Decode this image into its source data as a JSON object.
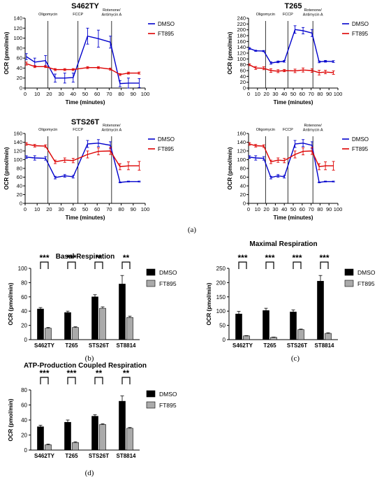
{
  "panel_labels": {
    "a": "(a)",
    "b": "(b)",
    "c": "(c)",
    "d": "(d)"
  },
  "chart_data": [
    {
      "type": "line",
      "title": "S462TY",
      "xlabel": "Time (minutes)",
      "ylabel": "OCR (pmol/min)",
      "xlim": [
        0,
        100
      ],
      "ylim": [
        0,
        140
      ],
      "xticks": [
        "0",
        "10",
        "20",
        "30",
        "40",
        "50",
        "60",
        "70",
        "80",
        "90",
        "100"
      ],
      "yticks": [
        "0",
        "20",
        "40",
        "60",
        "80",
        "100",
        "120",
        "140"
      ],
      "injections": [
        {
          "x": 19,
          "label": "Oligomycin"
        },
        {
          "x": 44,
          "label": "FCCP"
        },
        {
          "x": 72,
          "label": "Rotenone/ Antimycin A",
          "lines": [
            "Rotenone/",
            "Antimycin A"
          ]
        }
      ],
      "legend": "right",
      "series": [
        {
          "name": "DMSO",
          "color": "#0000cc",
          "x": [
            1,
            8,
            17,
            25,
            33,
            40,
            52,
            61,
            71,
            79,
            86,
            95
          ],
          "y": [
            63,
            52,
            55,
            20,
            20,
            21,
            104,
            99,
            92,
            9,
            10,
            10
          ],
          "err": [
            6,
            8,
            10,
            8,
            10,
            9,
            16,
            17,
            12,
            6,
            10,
            9
          ]
        },
        {
          "name": "FT895",
          "color": "#dd0000",
          "x": [
            1,
            8,
            17,
            25,
            33,
            40,
            52,
            61,
            71,
            79,
            86,
            95
          ],
          "y": [
            49,
            43,
            43,
            37,
            37,
            37,
            41,
            41,
            38,
            27,
            30,
            30
          ],
          "err": [
            3,
            2,
            2,
            2,
            2,
            2,
            2,
            2,
            2,
            2,
            2,
            2
          ]
        }
      ]
    },
    {
      "type": "line",
      "title": "T265",
      "xlabel": "Time (minutes)",
      "ylabel": "OCR (pmol/min)",
      "xlim": [
        0,
        100
      ],
      "ylim": [
        0,
        240
      ],
      "xticks": [
        "0",
        "10",
        "20",
        "30",
        "40",
        "50",
        "60",
        "70",
        "80",
        "90",
        "100"
      ],
      "yticks": [
        "0",
        "20",
        "40",
        "60",
        "80",
        "100",
        "120",
        "140",
        "160",
        "180",
        "200",
        "220",
        "240"
      ],
      "injections": [
        {
          "x": 19,
          "label": "Oligomycin"
        },
        {
          "x": 44,
          "label": "FCCP"
        },
        {
          "x": 72,
          "label": "Rotenone/ Antimycin A",
          "lines": [
            "Rotenone/",
            "Antimycin A"
          ]
        }
      ],
      "legend": "right",
      "series": [
        {
          "name": "DMSO",
          "color": "#0000cc",
          "x": [
            1,
            8,
            17,
            25,
            33,
            40,
            52,
            61,
            71,
            79,
            86,
            95
          ],
          "y": [
            136,
            128,
            127,
            86,
            90,
            92,
            201,
            197,
            189,
            90,
            92,
            91
          ],
          "err": [
            3,
            2,
            2,
            4,
            3,
            3,
            13,
            11,
            12,
            3,
            3,
            3
          ]
        },
        {
          "name": "FT895",
          "color": "#dd0000",
          "x": [
            1,
            8,
            17,
            25,
            33,
            40,
            52,
            61,
            71,
            79,
            86,
            95
          ],
          "y": [
            80,
            69,
            68,
            60,
            58,
            60,
            59,
            62,
            60,
            53,
            55,
            53
          ],
          "err": [
            3,
            5,
            5,
            6,
            5,
            4,
            6,
            7,
            6,
            8,
            6,
            6
          ]
        }
      ]
    },
    {
      "type": "line",
      "title": "STS26T",
      "xlabel": "Time (minutes)",
      "ylabel": "OCR (pmol/min)",
      "xlim": [
        0,
        100
      ],
      "ylim": [
        0,
        160
      ],
      "xticks": [
        "0",
        "10",
        "20",
        "30",
        "40",
        "50",
        "60",
        "70",
        "80",
        "90",
        "100"
      ],
      "yticks": [
        "0",
        "20",
        "40",
        "60",
        "80",
        "100",
        "120",
        "140",
        "160"
      ],
      "injections": [
        {
          "x": 19,
          "label": "Oligomycin"
        },
        {
          "x": 44,
          "label": "FCCP"
        },
        {
          "x": 72,
          "label": "Rotenone/ Antimycin A",
          "lines": [
            "Rotenone/",
            "Antimycin A"
          ]
        }
      ],
      "legend": "right",
      "series": [
        {
          "name": "DMSO",
          "color": "#0000cc",
          "x": [
            1,
            8,
            17,
            25,
            33,
            40,
            52,
            61,
            71,
            79,
            86,
            95
          ],
          "y": [
            106,
            104,
            103,
            59,
            63,
            61,
            136,
            138,
            133,
            48,
            50,
            50
          ],
          "err": [
            3,
            5,
            4,
            3,
            3,
            3,
            8,
            8,
            8,
            1,
            1,
            1
          ]
        },
        {
          "name": "FT895",
          "color": "#dd0000",
          "x": [
            1,
            8,
            17,
            25,
            33,
            40,
            52,
            61,
            71,
            79,
            86,
            95
          ],
          "y": [
            136,
            132,
            131,
            95,
            99,
            98,
            112,
            119,
            120,
            84,
            86,
            86
          ],
          "err": [
            3,
            3,
            3,
            4,
            5,
            5,
            8,
            8,
            8,
            7,
            9,
            10
          ]
        }
      ]
    },
    {
      "type": "line",
      "title": "",
      "xlabel": "Time (minutes)",
      "ylabel": "OCR (pmol/min)",
      "xlim": [
        0,
        100
      ],
      "ylim": [
        0,
        160
      ],
      "xticks": [
        "0",
        "10",
        "20",
        "30",
        "40",
        "50",
        "60",
        "70",
        "80",
        "90",
        "100"
      ],
      "yticks": [
        "0",
        "20",
        "40",
        "60",
        "80",
        "100",
        "120",
        "140",
        "160"
      ],
      "injections": [
        {
          "x": 19,
          "label": "Oligomycin"
        },
        {
          "x": 44,
          "label": "FCCP"
        },
        {
          "x": 72,
          "label": "Rotenone/ Antimycin A",
          "lines": [
            "Rotenone/",
            "Antimycin A"
          ]
        }
      ],
      "legend": "right",
      "series": [
        {
          "name": "DMSO",
          "color": "#0000cc",
          "x": [
            1,
            8,
            17,
            25,
            33,
            40,
            52,
            61,
            71,
            79,
            86,
            95
          ],
          "y": [
            106,
            104,
            103,
            59,
            63,
            61,
            136,
            138,
            133,
            48,
            50,
            50
          ],
          "err": [
            3,
            5,
            4,
            3,
            3,
            3,
            8,
            8,
            8,
            1,
            1,
            1
          ]
        },
        {
          "name": "FT895",
          "color": "#dd0000",
          "x": [
            1,
            8,
            17,
            25,
            33,
            40,
            52,
            61,
            71,
            79,
            86,
            95
          ],
          "y": [
            136,
            132,
            131,
            95,
            99,
            98,
            112,
            119,
            120,
            84,
            86,
            86
          ],
          "err": [
            3,
            3,
            3,
            4,
            5,
            5,
            8,
            8,
            8,
            7,
            9,
            10
          ]
        }
      ]
    },
    {
      "type": "bar",
      "title": "Basal Respiration",
      "ylabel": "OCR (pmol/min)",
      "ylim": [
        0,
        100
      ],
      "yticks": [
        "0",
        "20",
        "40",
        "60",
        "80",
        "100"
      ],
      "categories": [
        "S462TY",
        "T265",
        "STS26T",
        "ST8814"
      ],
      "significance": [
        "***",
        "***",
        "**",
        "**"
      ],
      "legend": "right",
      "series": [
        {
          "name": "DMSO",
          "color": "#000000",
          "values": [
            43,
            38,
            60,
            78
          ],
          "err": [
            2,
            2,
            3,
            12
          ]
        },
        {
          "name": "FT895",
          "color": "#aaaaaa",
          "values": [
            16,
            17,
            44,
            31
          ],
          "err": [
            1,
            1,
            2,
            2
          ]
        }
      ]
    },
    {
      "type": "bar",
      "title": "Maximal Respiration",
      "ylabel": "OCR (pmol/min)",
      "ylim": [
        0,
        250
      ],
      "yticks": [
        "0",
        "50",
        "100",
        "150",
        "200",
        "250"
      ],
      "categories": [
        "S462TY",
        "T265",
        "STS26T",
        "ST8814"
      ],
      "significance": [
        "***",
        "***",
        "***",
        "***"
      ],
      "legend": "right",
      "series": [
        {
          "name": "DMSO",
          "color": "#000000",
          "values": [
            90,
            102,
            97,
            205
          ],
          "err": [
            9,
            8,
            7,
            20
          ]
        },
        {
          "name": "FT895",
          "color": "#aaaaaa",
          "values": [
            13,
            8,
            35,
            22
          ],
          "err": [
            1,
            1,
            2,
            2
          ]
        }
      ]
    },
    {
      "type": "bar",
      "title": "ATP-Production Coupled Respiration",
      "ylabel": "OCR (pmol/min)",
      "ylim": [
        0,
        80
      ],
      "yticks": [
        "0",
        "20",
        "40",
        "60",
        "80"
      ],
      "categories": [
        "S462TY",
        "T265",
        "STS26T",
        "ST8814"
      ],
      "significance": [
        "***",
        "***",
        "**",
        "**"
      ],
      "legend": "right",
      "series": [
        {
          "name": "DMSO",
          "color": "#000000",
          "values": [
            31,
            37,
            45,
            65
          ],
          "err": [
            2,
            3,
            2,
            7
          ]
        },
        {
          "name": "FT895",
          "color": "#aaaaaa",
          "values": [
            7,
            10,
            34,
            29
          ],
          "err": [
            1,
            1,
            1,
            1
          ]
        }
      ]
    }
  ]
}
